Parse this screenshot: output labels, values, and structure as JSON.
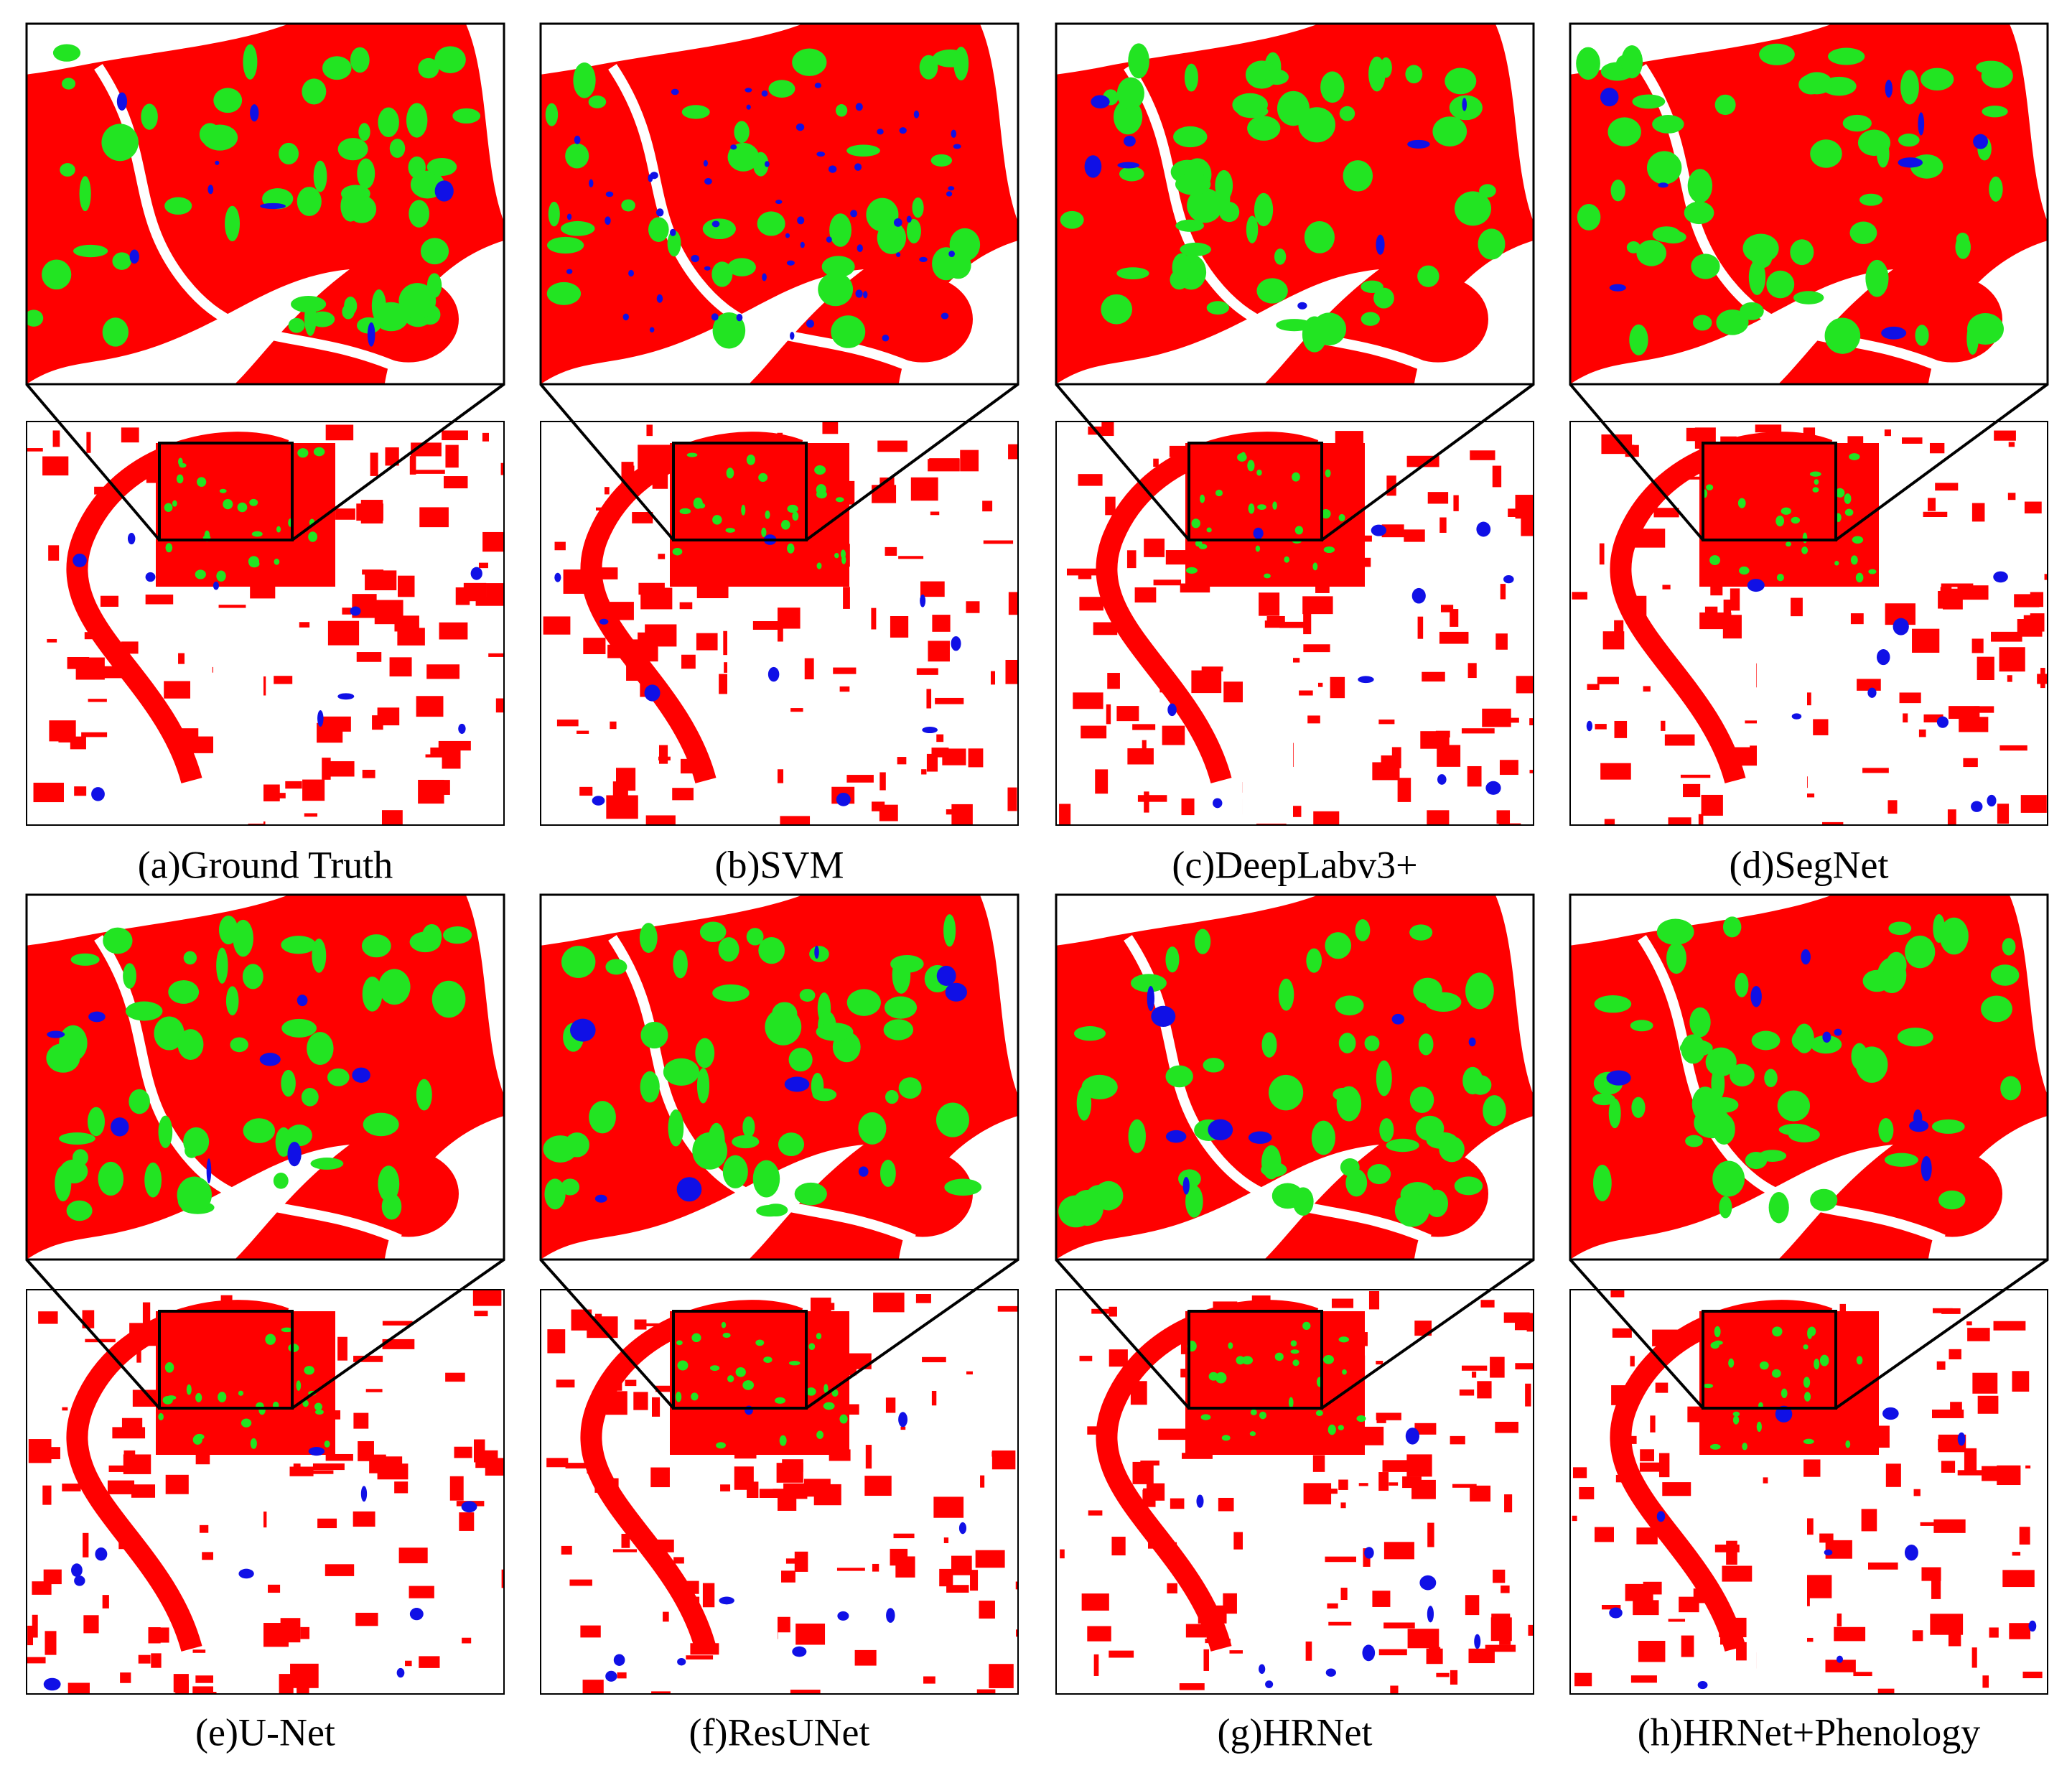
{
  "panels": [
    {
      "caption": "(a)Ground Truth"
    },
    {
      "caption": "(b)SVM"
    },
    {
      "caption": "(c)DeepLabv3+"
    },
    {
      "caption": "(d)SegNet"
    },
    {
      "caption": "(e)U-Net"
    },
    {
      "caption": "(f)ResUNet"
    },
    {
      "caption": "(g)HRNet"
    },
    {
      "caption": "(h)HRNet+Phenology"
    }
  ]
}
